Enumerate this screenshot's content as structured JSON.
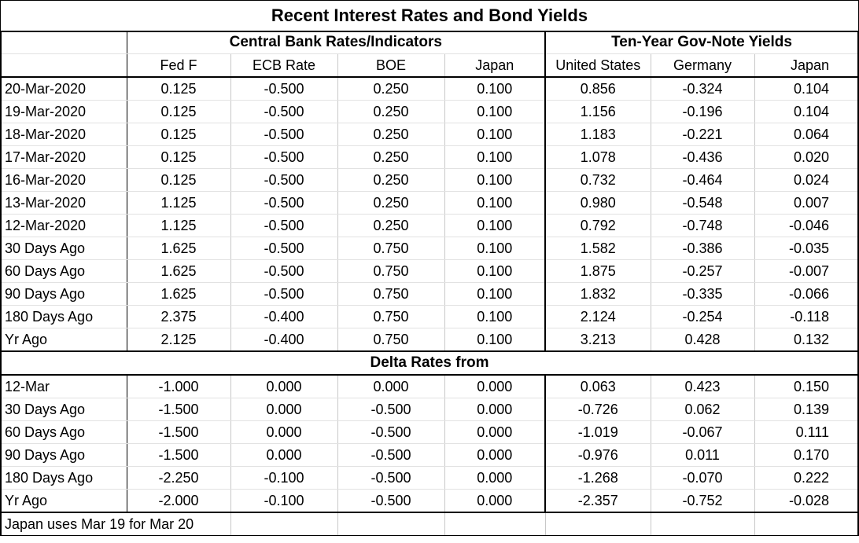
{
  "title": "Recent Interest Rates and Bond Yields",
  "groups": {
    "central": "Central Bank Rates/Indicators",
    "ten_year": "Ten-Year Gov-Note Yields"
  },
  "columns": [
    "Fed F",
    "ECB Rate",
    "BOE",
    "Japan",
    "United States",
    "Germany",
    "Japan"
  ],
  "rates": [
    [
      "20-Mar-2020",
      "0.125",
      "-0.500",
      "0.250",
      "0.100",
      "0.856",
      "-0.324",
      "0.104"
    ],
    [
      "19-Mar-2020",
      "0.125",
      "-0.500",
      "0.250",
      "0.100",
      "1.156",
      "-0.196",
      "0.104"
    ],
    [
      "18-Mar-2020",
      "0.125",
      "-0.500",
      "0.250",
      "0.100",
      "1.183",
      "-0.221",
      "0.064"
    ],
    [
      "17-Mar-2020",
      "0.125",
      "-0.500",
      "0.250",
      "0.100",
      "1.078",
      "-0.436",
      "0.020"
    ],
    [
      "16-Mar-2020",
      "0.125",
      "-0.500",
      "0.250",
      "0.100",
      "0.732",
      "-0.464",
      "0.024"
    ],
    [
      "13-Mar-2020",
      "1.125",
      "-0.500",
      "0.250",
      "0.100",
      "0.980",
      "-0.548",
      "0.007"
    ],
    [
      "12-Mar-2020",
      "1.125",
      "-0.500",
      "0.250",
      "0.100",
      "0.792",
      "-0.748",
      "-0.046"
    ]
  ],
  "history": [
    [
      "30 Days Ago",
      "1.625",
      "-0.500",
      "0.750",
      "0.100",
      "1.582",
      "-0.386",
      "-0.035"
    ],
    [
      "60 Days Ago",
      "1.625",
      "-0.500",
      "0.750",
      "0.100",
      "1.875",
      "-0.257",
      "-0.007"
    ],
    [
      "90 Days Ago",
      "1.625",
      "-0.500",
      "0.750",
      "0.100",
      "1.832",
      "-0.335",
      "-0.066"
    ],
    [
      "180 Days Ago",
      "2.375",
      "-0.400",
      "0.750",
      "0.100",
      "2.124",
      "-0.254",
      "-0.118"
    ],
    [
      "Yr Ago",
      "2.125",
      "-0.400",
      "0.750",
      "0.100",
      "3.213",
      "0.428",
      "0.132"
    ]
  ],
  "delta_header": "Delta Rates from",
  "delta": [
    [
      "12-Mar",
      "-1.000",
      "0.000",
      "0.000",
      "0.000",
      "0.063",
      "0.423",
      "0.150"
    ],
    [
      "30 Days Ago",
      "-1.500",
      "0.000",
      "-0.500",
      "0.000",
      "-0.726",
      "0.062",
      "0.139"
    ],
    [
      "60 Days Ago",
      "-1.500",
      "0.000",
      "-0.500",
      "0.000",
      "-1.019",
      "-0.067",
      "0.111"
    ],
    [
      "90 Days Ago",
      "-1.500",
      "0.000",
      "-0.500",
      "0.000",
      "-0.976",
      "0.011",
      "0.170"
    ],
    [
      "180 Days Ago",
      "-2.250",
      "-0.100",
      "-0.500",
      "0.000",
      "-1.268",
      "-0.070",
      "0.222"
    ],
    [
      "Yr Ago",
      "-2.000",
      "-0.100",
      "-0.500",
      "0.000",
      "-2.357",
      "-0.752",
      "-0.028"
    ]
  ],
  "footnote": "Japan uses Mar 19 for Mar 20"
}
